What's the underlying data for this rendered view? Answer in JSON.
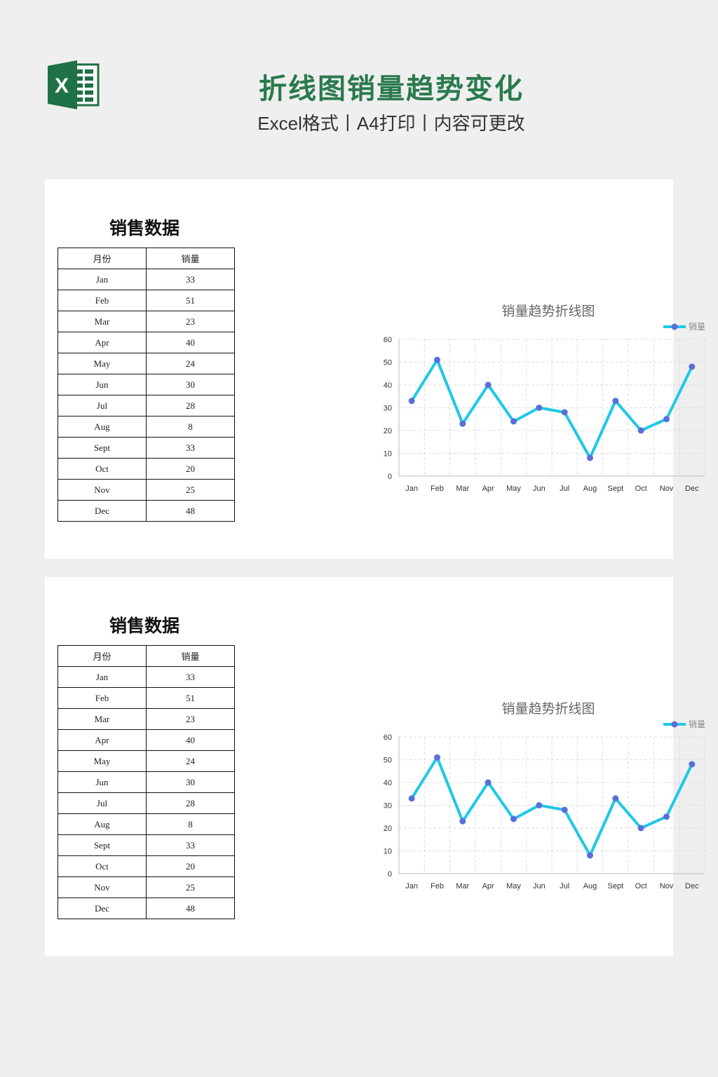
{
  "header": {
    "title": "折线图销量趋势变化",
    "subtitle": "Excel格式丨A4打印丨内容可更改",
    "logo_letter": "X",
    "accent": "#2a7a4e"
  },
  "panels": [
    {
      "table_title": "销售数据",
      "columns": [
        "月份",
        "销量"
      ],
      "rows": [
        [
          "Jan",
          "33"
        ],
        [
          "Feb",
          "51"
        ],
        [
          "Mar",
          "23"
        ],
        [
          "Apr",
          "40"
        ],
        [
          "May",
          "24"
        ],
        [
          "Jun",
          "30"
        ],
        [
          "Jul",
          "28"
        ],
        [
          "Aug",
          "8"
        ],
        [
          "Sept",
          "33"
        ],
        [
          "Oct",
          "20"
        ],
        [
          "Nov",
          "25"
        ],
        [
          "Dec",
          "48"
        ]
      ]
    },
    {
      "table_title": "销售数据",
      "columns": [
        "月份",
        "销量"
      ],
      "rows": [
        [
          "Jan",
          "33"
        ],
        [
          "Feb",
          "51"
        ],
        [
          "Mar",
          "23"
        ],
        [
          "Apr",
          "40"
        ],
        [
          "May",
          "24"
        ],
        [
          "Jun",
          "30"
        ],
        [
          "Jul",
          "28"
        ],
        [
          "Aug",
          "8"
        ],
        [
          "Sept",
          "33"
        ],
        [
          "Oct",
          "20"
        ],
        [
          "Nov",
          "25"
        ],
        [
          "Dec",
          "48"
        ]
      ]
    }
  ],
  "chart_data": [
    {
      "type": "line",
      "title": "销量趋势折线图",
      "categories": [
        "Jan",
        "Feb",
        "Mar",
        "Apr",
        "May",
        "Jun",
        "Jul",
        "Aug",
        "Sept",
        "Oct",
        "Nov",
        "Dec"
      ],
      "series": [
        {
          "name": "销量",
          "values": [
            33,
            51,
            23,
            40,
            24,
            30,
            28,
            8,
            33,
            20,
            25,
            48
          ],
          "color": "#1ec8e6",
          "marker_color": "#5a6fd8"
        }
      ],
      "ylim": [
        0,
        60
      ],
      "yticks": [
        0,
        10,
        20,
        30,
        40,
        50,
        60
      ],
      "grid": true,
      "legend": "top-right"
    },
    {
      "type": "line",
      "title": "销量趋势折线图",
      "categories": [
        "Jan",
        "Feb",
        "Mar",
        "Apr",
        "May",
        "Jun",
        "Jul",
        "Aug",
        "Sept",
        "Oct",
        "Nov",
        "Dec"
      ],
      "series": [
        {
          "name": "销量",
          "values": [
            33,
            51,
            23,
            40,
            24,
            30,
            28,
            8,
            33,
            20,
            25,
            48
          ],
          "color": "#1ec8e6",
          "marker_color": "#5a6fd8"
        }
      ],
      "ylim": [
        0,
        60
      ],
      "yticks": [
        0,
        10,
        20,
        30,
        40,
        50,
        60
      ],
      "grid": true,
      "legend": "top-right"
    }
  ]
}
